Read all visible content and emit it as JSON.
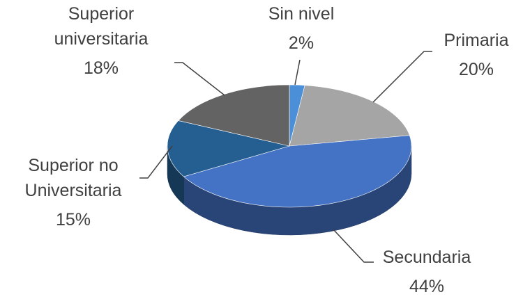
{
  "chart_data": {
    "type": "pie3d",
    "categories": [
      "Sin nivel",
      "Primaria",
      "Secundaria",
      "Superior no Universitaria",
      "Superior universitaria"
    ],
    "values": [
      2,
      20,
      44,
      15,
      18
    ],
    "value_labels": [
      "2%",
      "20%",
      "44%",
      "15%",
      "18%"
    ],
    "colors": [
      "#4a8fd8",
      "#a5a5a5",
      "#4472c4",
      "#255e91",
      "#636363"
    ]
  }
}
